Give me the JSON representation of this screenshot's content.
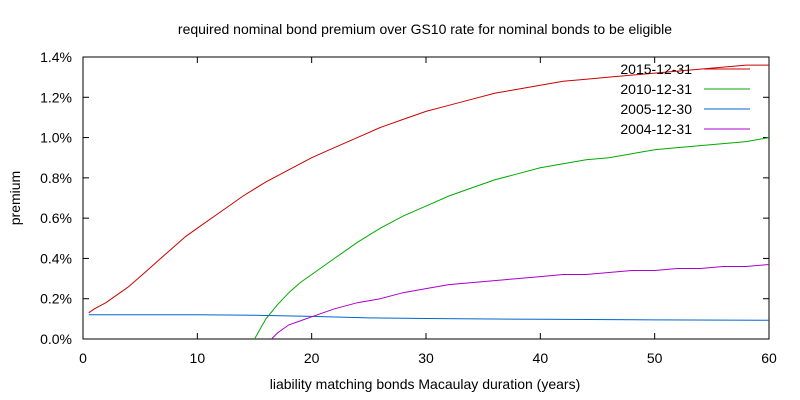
{
  "chart_data": {
    "type": "line",
    "title": "required nominal bond premium over GS10 rate for nominal bonds to be eligible",
    "xlabel": "liability matching bonds Macaulay duration (years)",
    "ylabel": "premium",
    "xlim": [
      0,
      60
    ],
    "ylim": [
      0,
      1.4
    ],
    "xticks": [
      0,
      10,
      20,
      30,
      40,
      50,
      60
    ],
    "yticks": [
      {
        "value": 0.0,
        "label": "0.0%"
      },
      {
        "value": 0.2,
        "label": "0.2%"
      },
      {
        "value": 0.4,
        "label": "0.4%"
      },
      {
        "value": 0.6,
        "label": "0.6%"
      },
      {
        "value": 0.8,
        "label": "0.8%"
      },
      {
        "value": 1.0,
        "label": "1.0%"
      },
      {
        "value": 1.2,
        "label": "1.2%"
      },
      {
        "value": 1.4,
        "label": "1.4%"
      }
    ],
    "grid": false,
    "legend_position": "top-right",
    "series": [
      {
        "name": "2015-12-31",
        "color": "#cc0000",
        "points": [
          [
            0.5,
            0.13
          ],
          [
            1,
            0.15
          ],
          [
            2,
            0.18
          ],
          [
            3,
            0.22
          ],
          [
            4,
            0.26
          ],
          [
            5,
            0.31
          ],
          [
            6,
            0.36
          ],
          [
            7,
            0.41
          ],
          [
            8,
            0.46
          ],
          [
            9,
            0.51
          ],
          [
            10,
            0.55
          ],
          [
            12,
            0.63
          ],
          [
            14,
            0.71
          ],
          [
            16,
            0.78
          ],
          [
            18,
            0.84
          ],
          [
            20,
            0.9
          ],
          [
            22,
            0.95
          ],
          [
            24,
            1.0
          ],
          [
            26,
            1.05
          ],
          [
            28,
            1.09
          ],
          [
            30,
            1.13
          ],
          [
            32,
            1.16
          ],
          [
            34,
            1.19
          ],
          [
            36,
            1.22
          ],
          [
            38,
            1.24
          ],
          [
            40,
            1.26
          ],
          [
            42,
            1.28
          ],
          [
            44,
            1.29
          ],
          [
            46,
            1.3
          ],
          [
            48,
            1.31
          ],
          [
            50,
            1.32
          ],
          [
            52,
            1.33
          ],
          [
            54,
            1.34
          ],
          [
            56,
            1.35
          ],
          [
            58,
            1.36
          ],
          [
            60,
            1.36
          ]
        ]
      },
      {
        "name": "2010-12-31",
        "color": "#00aa00",
        "points": [
          [
            15,
            0.0
          ],
          [
            16,
            0.1
          ],
          [
            17,
            0.17
          ],
          [
            18,
            0.23
          ],
          [
            19,
            0.28
          ],
          [
            20,
            0.32
          ],
          [
            22,
            0.4
          ],
          [
            24,
            0.48
          ],
          [
            26,
            0.55
          ],
          [
            28,
            0.61
          ],
          [
            30,
            0.66
          ],
          [
            32,
            0.71
          ],
          [
            34,
            0.75
          ],
          [
            36,
            0.79
          ],
          [
            38,
            0.82
          ],
          [
            40,
            0.85
          ],
          [
            42,
            0.87
          ],
          [
            44,
            0.89
          ],
          [
            46,
            0.9
          ],
          [
            48,
            0.92
          ],
          [
            50,
            0.94
          ],
          [
            52,
            0.95
          ],
          [
            54,
            0.96
          ],
          [
            56,
            0.97
          ],
          [
            58,
            0.98
          ],
          [
            60,
            1.0
          ]
        ]
      },
      {
        "name": "2005-12-30",
        "color": "#0066cc",
        "points": [
          [
            0.5,
            0.12
          ],
          [
            5,
            0.12
          ],
          [
            10,
            0.12
          ],
          [
            15,
            0.118
          ],
          [
            20,
            0.112
          ],
          [
            25,
            0.105
          ],
          [
            30,
            0.102
          ],
          [
            40,
            0.098
          ],
          [
            50,
            0.095
          ],
          [
            60,
            0.093
          ]
        ]
      },
      {
        "name": "2004-12-31",
        "color": "#aa00cc",
        "points": [
          [
            16.5,
            0.0
          ],
          [
            17,
            0.03
          ],
          [
            18,
            0.07
          ],
          [
            19,
            0.09
          ],
          [
            20,
            0.11
          ],
          [
            22,
            0.15
          ],
          [
            24,
            0.18
          ],
          [
            26,
            0.2
          ],
          [
            28,
            0.23
          ],
          [
            30,
            0.25
          ],
          [
            32,
            0.27
          ],
          [
            34,
            0.28
          ],
          [
            36,
            0.29
          ],
          [
            38,
            0.3
          ],
          [
            40,
            0.31
          ],
          [
            42,
            0.32
          ],
          [
            44,
            0.32
          ],
          [
            46,
            0.33
          ],
          [
            48,
            0.34
          ],
          [
            50,
            0.34
          ],
          [
            52,
            0.35
          ],
          [
            54,
            0.35
          ],
          [
            56,
            0.36
          ],
          [
            58,
            0.36
          ],
          [
            60,
            0.37
          ]
        ]
      }
    ]
  }
}
